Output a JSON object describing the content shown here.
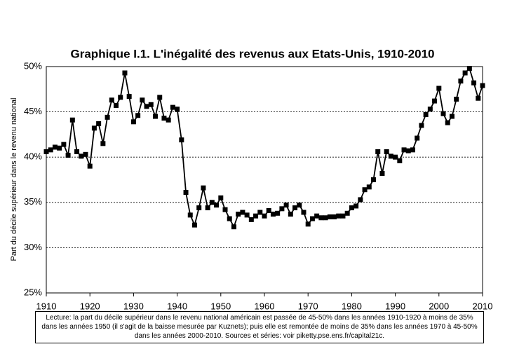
{
  "chart_data": {
    "type": "line",
    "title": "Graphique I.1. L'inégalité des revenus aux Etats-Unis, 1910-2010",
    "y_label": "Part du décile supérieur dans le revenu national",
    "note": "Lecture: la part du décile supérieur dans le revenu national américain est passée de 45-50% dans les années 1910-1920 à moins de 35% dans les années 1950 (il s'agit de la baisse mesurée par Kuznets); puis elle est remontée de moins de 35% dans les années 1970 à 45-50% dans les années 2000-2010. Sources et séries: voir piketty.pse.ens.fr/capital21c.",
    "x": [
      1910,
      1911,
      1912,
      1913,
      1914,
      1915,
      1916,
      1917,
      1918,
      1919,
      1920,
      1921,
      1922,
      1923,
      1924,
      1925,
      1926,
      1927,
      1928,
      1929,
      1930,
      1931,
      1932,
      1933,
      1934,
      1935,
      1936,
      1937,
      1938,
      1939,
      1940,
      1941,
      1942,
      1943,
      1944,
      1945,
      1946,
      1947,
      1948,
      1949,
      1950,
      1951,
      1952,
      1953,
      1954,
      1955,
      1956,
      1957,
      1958,
      1959,
      1960,
      1961,
      1962,
      1963,
      1964,
      1965,
      1966,
      1967,
      1968,
      1969,
      1970,
      1971,
      1972,
      1973,
      1974,
      1975,
      1976,
      1977,
      1978,
      1979,
      1980,
      1981,
      1982,
      1983,
      1984,
      1985,
      1986,
      1987,
      1988,
      1989,
      1990,
      1991,
      1992,
      1993,
      1994,
      1995,
      1996,
      1997,
      1998,
      1999,
      2000,
      2001,
      2002,
      2003,
      2004,
      2005,
      2006,
      2007,
      2008,
      2009,
      2010
    ],
    "values": [
      40.6,
      40.8,
      41.1,
      41.0,
      41.4,
      40.2,
      44.1,
      40.6,
      40.1,
      40.3,
      39.0,
      43.2,
      43.7,
      41.5,
      44.4,
      46.3,
      45.7,
      46.6,
      49.3,
      46.7,
      43.9,
      44.6,
      46.3,
      45.6,
      45.8,
      44.5,
      46.6,
      44.3,
      44.1,
      45.5,
      45.3,
      41.9,
      36.1,
      33.6,
      32.5,
      34.4,
      36.6,
      34.4,
      35.0,
      34.7,
      35.5,
      34.2,
      33.2,
      32.3,
      33.7,
      33.9,
      33.6,
      33.1,
      33.5,
      33.9,
      33.5,
      34.1,
      33.7,
      33.8,
      34.3,
      34.7,
      33.7,
      34.4,
      34.7,
      33.9,
      32.6,
      33.2,
      33.5,
      33.3,
      33.3,
      33.4,
      33.4,
      33.5,
      33.5,
      33.8,
      34.4,
      34.6,
      35.3,
      36.4,
      36.7,
      37.5,
      40.6,
      38.2,
      40.6,
      40.1,
      40.0,
      39.6,
      40.8,
      40.7,
      40.8,
      42.1,
      43.5,
      44.7,
      45.3,
      46.2,
      47.6,
      44.8,
      43.8,
      44.5,
      46.4,
      48.4,
      49.3,
      49.8,
      48.2,
      46.5,
      47.9
    ],
    "color": "#000000",
    "xlim": [
      1910,
      2010
    ],
    "xticks": [
      1910,
      1920,
      1930,
      1940,
      1950,
      1960,
      1970,
      1980,
      1990,
      2000,
      2010
    ],
    "ylim": [
      25,
      50
    ],
    "yticks": [
      {
        "value": 25,
        "label": "25%"
      },
      {
        "value": 30,
        "label": "30%"
      },
      {
        "value": 35,
        "label": "35%"
      },
      {
        "value": 40,
        "label": "40%"
      },
      {
        "value": 45,
        "label": "45%"
      },
      {
        "value": 50,
        "label": "50%"
      }
    ],
    "grid": true
  }
}
